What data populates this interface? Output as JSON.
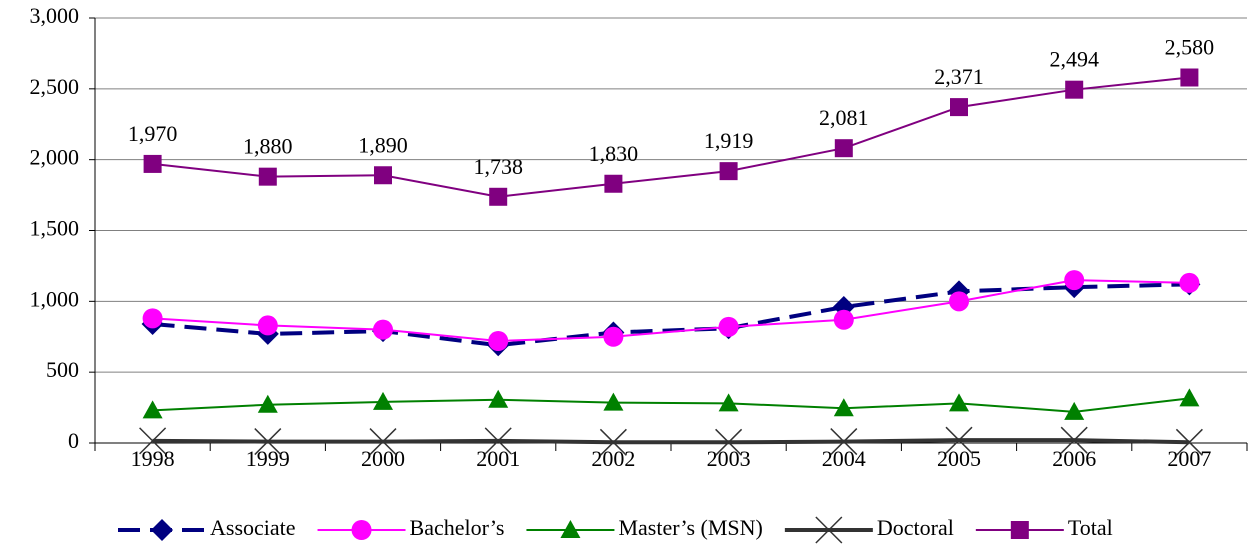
{
  "chart_data": {
    "type": "line",
    "categories": [
      "1998",
      "1999",
      "2000",
      "2001",
      "2002",
      "2003",
      "2004",
      "2005",
      "2006",
      "2007"
    ],
    "series": [
      {
        "name": "Associate",
        "color": "#000080",
        "marker": "diamond",
        "dashed": true,
        "values": [
          840,
          770,
          790,
          690,
          780,
          810,
          960,
          1070,
          1100,
          1120
        ]
      },
      {
        "name": "Bachelor’s",
        "color": "#ff00ff",
        "marker": "circle",
        "values": [
          880,
          830,
          800,
          720,
          750,
          820,
          870,
          1000,
          1150,
          1130
        ]
      },
      {
        "name": "Master’s (MSN)",
        "color": "#008000",
        "marker": "triangle",
        "values": [
          230,
          270,
          290,
          305,
          285,
          280,
          245,
          280,
          220,
          315
        ]
      },
      {
        "name": "Doctoral",
        "color": "#333333",
        "marker": "x",
        "values": [
          15,
          10,
          10,
          15,
          5,
          5,
          10,
          20,
          20,
          5
        ]
      },
      {
        "name": "Total",
        "color": "#800080",
        "marker": "square",
        "values": [
          1970,
          1880,
          1890,
          1738,
          1830,
          1919,
          2081,
          2371,
          2494,
          2580
        ],
        "value_labels": [
          "1,970",
          "1,880",
          "1,890",
          "1,738",
          "1,830",
          "1,919",
          "2,081",
          "2,371",
          "2,494",
          "2,580"
        ]
      }
    ],
    "ylim": [
      0,
      3000
    ],
    "yticks": [
      0,
      500,
      {
        "value": 1000,
        "label": "1,000"
      },
      {
        "value": 1500,
        "label": "1,500"
      },
      {
        "value": 2000,
        "label": "2,000"
      },
      {
        "value": 2500,
        "label": "2,500"
      },
      {
        "value": 3000,
        "label": "3,000"
      }
    ],
    "grid": true,
    "legend": "bottom"
  }
}
